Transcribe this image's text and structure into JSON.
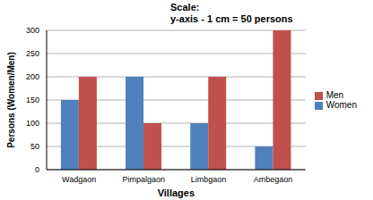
{
  "chart_data": {
    "type": "bar",
    "annotations": [
      "Scale:",
      "y-axis - 1 cm = 50 persons"
    ],
    "x_label": "Villages",
    "y_label": "Persons (Women/Men)",
    "categories": [
      "Wadgaon",
      "Pimpalgaon",
      "Limbgaon",
      "Ambegaon"
    ],
    "series": [
      {
        "name": "Women",
        "color": "#4f81bd",
        "values": [
          150,
          200,
          100,
          50
        ]
      },
      {
        "name": "Men",
        "color": "#c0504d",
        "values": [
          200,
          100,
          200,
          300
        ]
      }
    ],
    "ylim": [
      0,
      300
    ],
    "yticks": [
      0,
      50,
      100,
      150,
      200,
      250,
      300
    ],
    "grid": true,
    "legend": "right"
  }
}
